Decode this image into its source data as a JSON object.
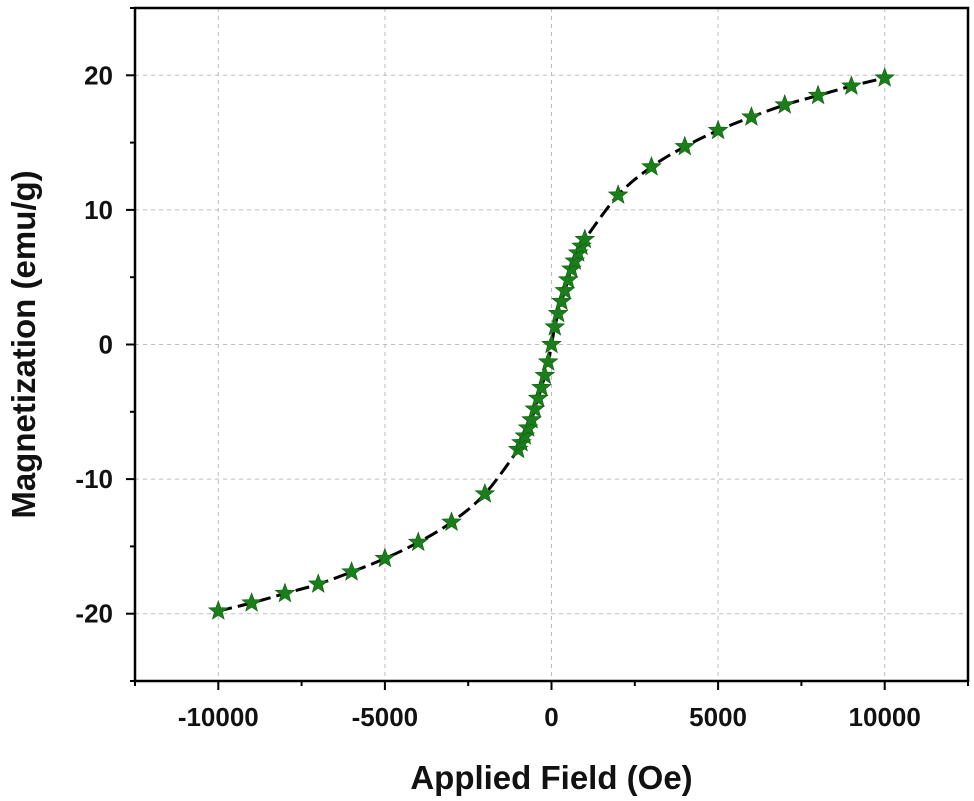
{
  "chart_data": {
    "type": "scatter",
    "title": "",
    "xlabel": "Applied Field (Oe)",
    "ylabel": "Magnetization (emu/g)",
    "xlim": [
      -12500,
      12500
    ],
    "ylim": [
      -25,
      25
    ],
    "x_ticks": [
      -10000,
      -5000,
      0,
      5000,
      10000
    ],
    "y_ticks": [
      -20,
      -10,
      0,
      10,
      20
    ],
    "x_tick_labels": [
      "-10000",
      "-5000",
      "0",
      "5000",
      "10000"
    ],
    "y_tick_labels": [
      "-20",
      "-10",
      "0",
      "10",
      "20"
    ],
    "grid": true,
    "marker": "star",
    "marker_color": "#1a7f1a",
    "line_color": "#000000",
    "line_style": "dashed",
    "series": [
      {
        "x": [
          -10000,
          -9000,
          -8000,
          -7000,
          -6000,
          -5000,
          -4000,
          -3000,
          -2000,
          -1000,
          -900,
          -800,
          -700,
          -600,
          -500,
          -400,
          -300,
          -200,
          -100,
          0,
          100,
          200,
          300,
          400,
          500,
          600,
          700,
          800,
          900,
          1000,
          2000,
          3000,
          4000,
          5000,
          6000,
          7000,
          8000,
          9000,
          10000
        ],
        "y": [
          -19.8,
          -19.2,
          -18.5,
          -17.8,
          -16.9,
          -15.9,
          -14.7,
          -13.2,
          -11.1,
          -7.8,
          -7.3,
          -6.8,
          -6.2,
          -5.6,
          -4.8,
          -4.0,
          -3.2,
          -2.3,
          -1.3,
          0.0,
          1.3,
          2.3,
          3.2,
          4.0,
          4.8,
          5.6,
          6.2,
          6.8,
          7.3,
          7.8,
          11.1,
          13.2,
          14.7,
          15.9,
          16.9,
          17.8,
          18.5,
          19.2,
          19.8
        ]
      }
    ]
  }
}
